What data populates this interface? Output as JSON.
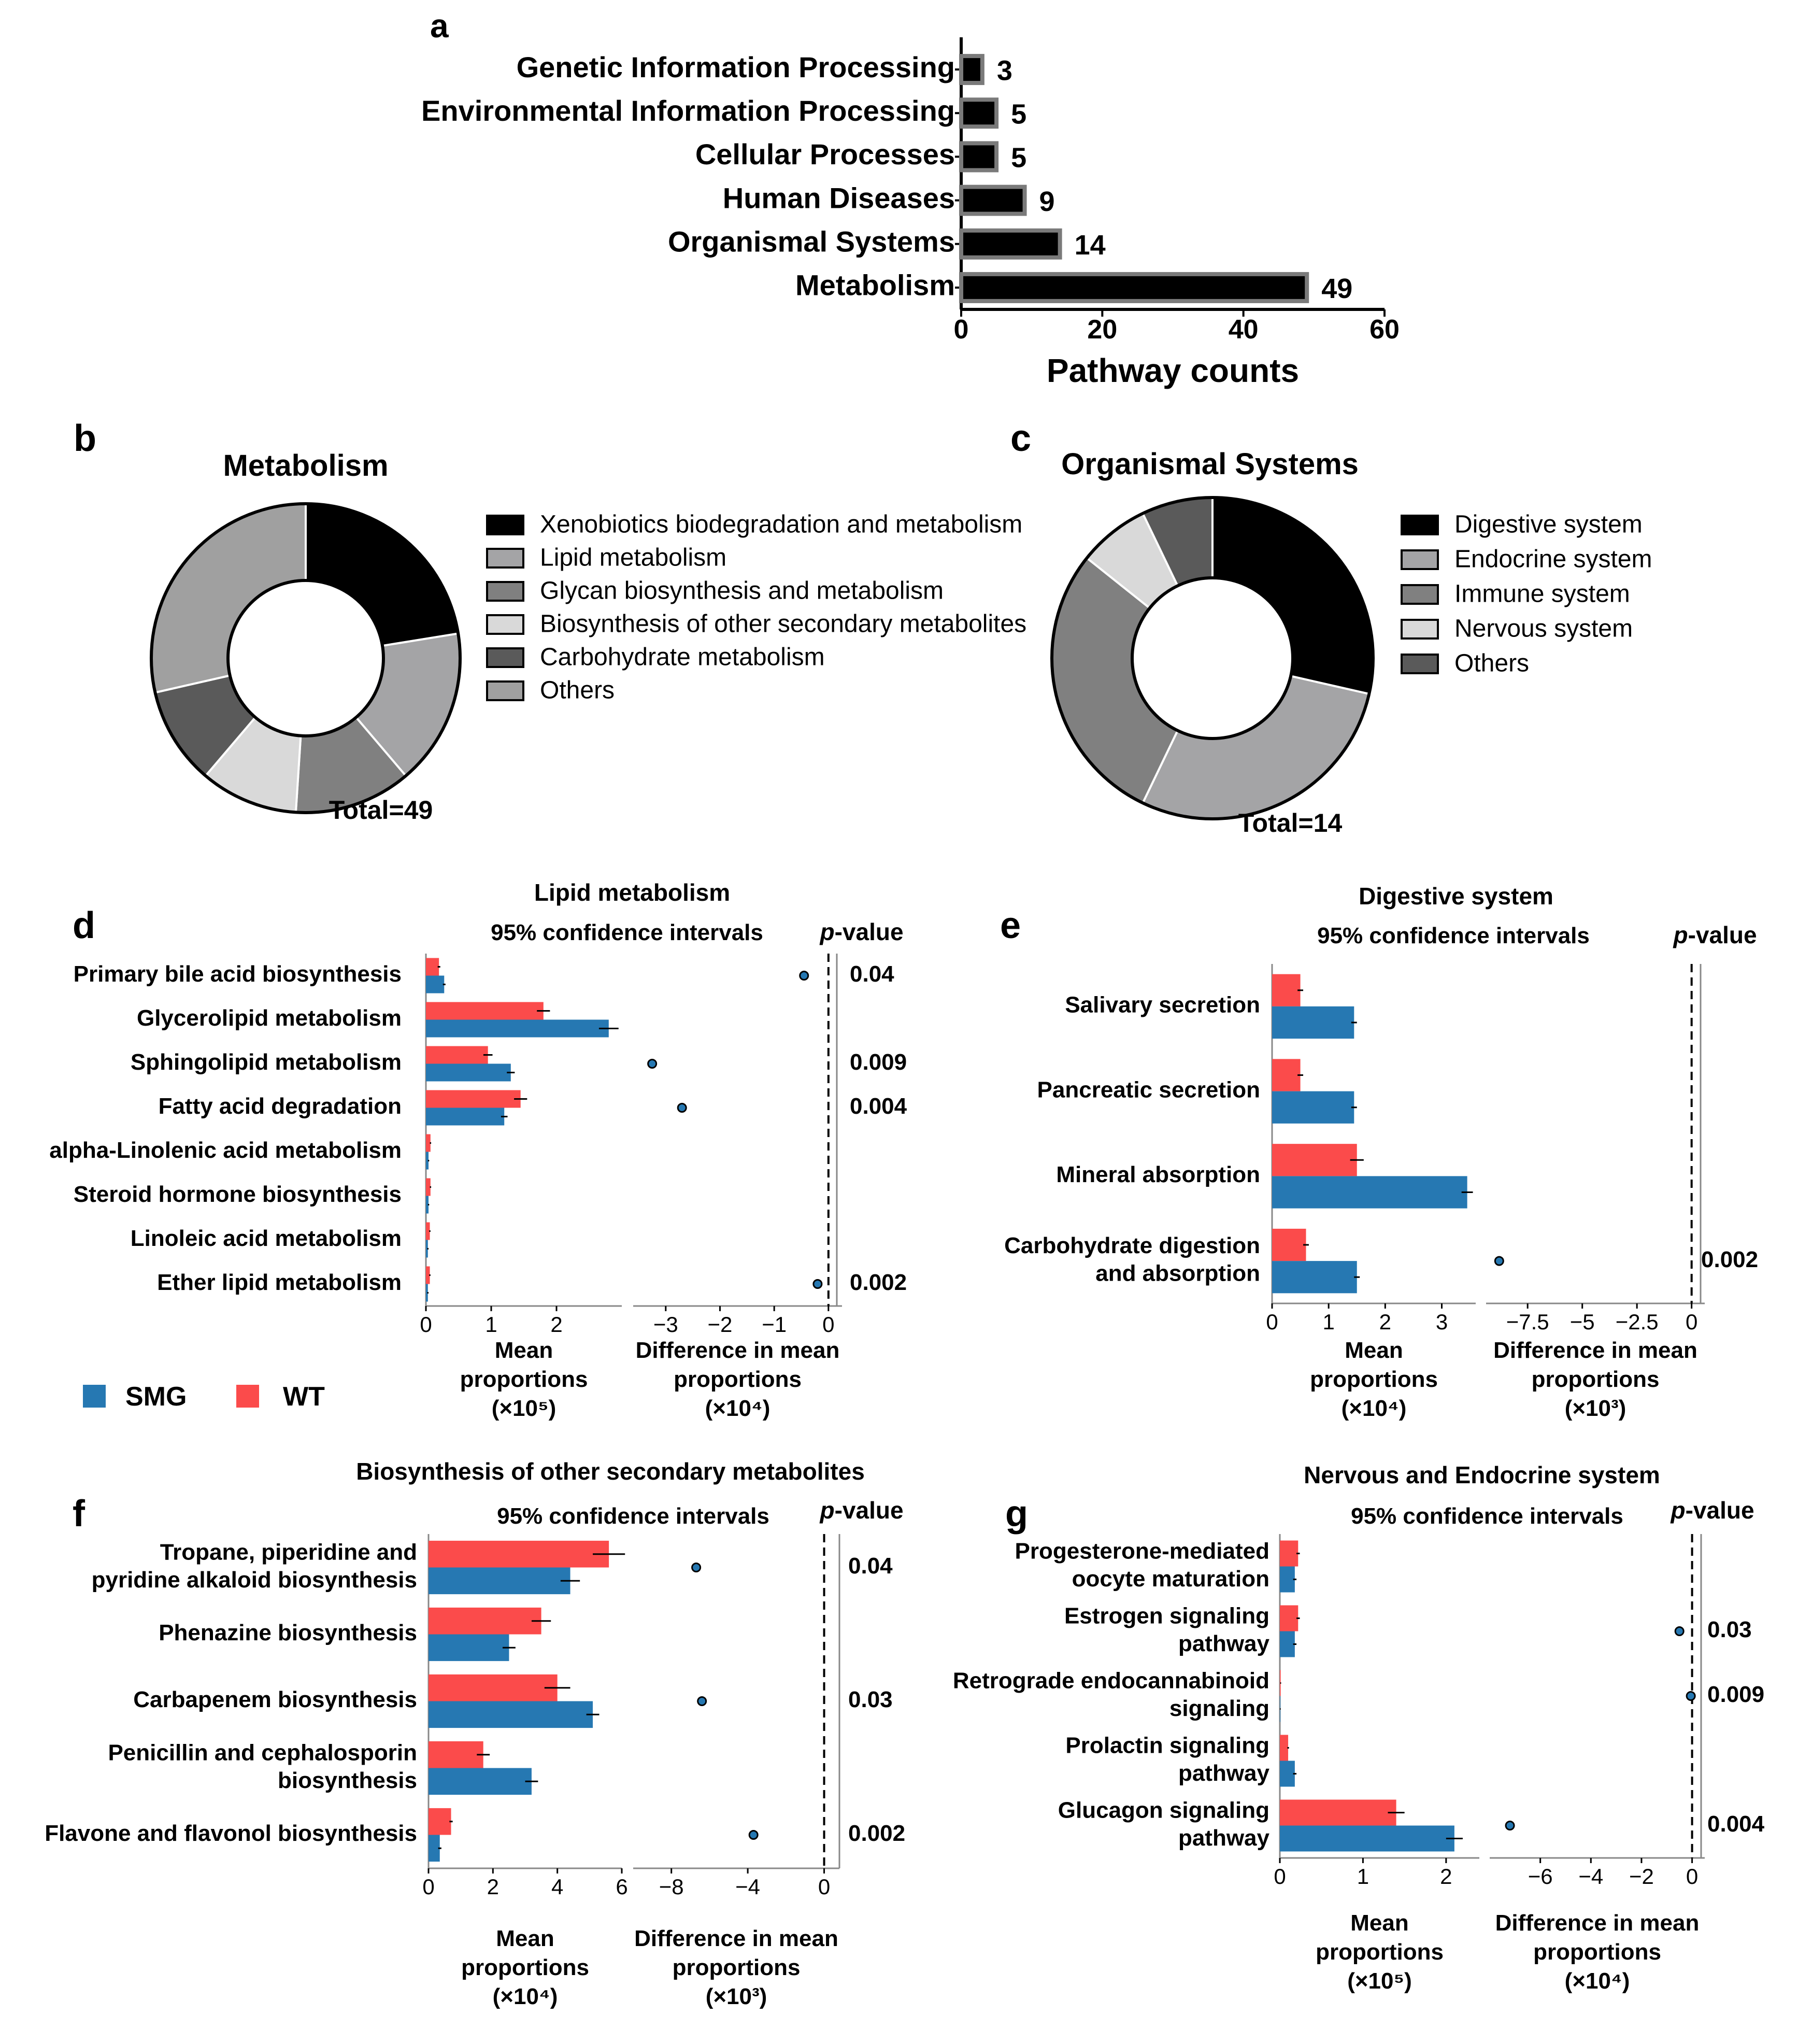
{
  "colors": {
    "smg": "#2678b2",
    "wt": "#fb4b4b",
    "black": "#000000",
    "gray": "#808080"
  },
  "legend": {
    "smg": "SMG",
    "wt": "WT"
  },
  "panel_labels": {
    "a": "a",
    "b": "b",
    "c": "c",
    "d": "d",
    "e": "e",
    "f": "f",
    "g": "g"
  },
  "common": {
    "ci": "95% confidence intervals",
    "p_label_italic": "p",
    "p_label_rest": "-value",
    "mean1": "Mean",
    "mean2": "proportions",
    "diff1": "Difference in mean",
    "diff2": "proportions"
  },
  "chart_data": [
    {
      "id": "a",
      "type": "bar",
      "orientation": "horizontal",
      "xlabel": "Pathway counts",
      "categories": [
        "Genetic Information Processing",
        "Environmental Information Processing",
        "Cellular Processes",
        "Human Diseases",
        "Organismal Systems",
        "Metabolism"
      ],
      "values": [
        3,
        5,
        5,
        9,
        14,
        49
      ],
      "value_labels": [
        "3",
        "5",
        "5",
        "9",
        "14",
        "49"
      ],
      "xlim": [
        0,
        60
      ],
      "ticks": [
        "0",
        "20",
        "40",
        "60"
      ]
    },
    {
      "id": "b",
      "type": "pie",
      "donut": true,
      "title": "Metabolism",
      "total_label": "Total=49",
      "slices": [
        {
          "label": "Xenobiotics biodegradation and metabolism",
          "value": 11,
          "color": "#000000"
        },
        {
          "label": "Lipid metabolism",
          "value": 8,
          "color": "#a4a4a6"
        },
        {
          "label": "Glycan biosynthesis and metabolism",
          "value": 6,
          "color": "#808080"
        },
        {
          "label": "Biosynthesis of other secondary metabolites",
          "value": 5,
          "color": "#d9d9d9"
        },
        {
          "label": "Carbohydrate metabolism",
          "value": 5,
          "color": "#5a5a5a"
        },
        {
          "label": "Others",
          "value": 14,
          "color": "#a0a0a0"
        }
      ]
    },
    {
      "id": "c",
      "type": "pie",
      "donut": true,
      "title": "Organismal Systems",
      "total_label": "Total=14",
      "slices": [
        {
          "label": "Digestive system",
          "value": 4,
          "color": "#000000"
        },
        {
          "label": "Endocrine system",
          "value": 4,
          "color": "#a4a4a6"
        },
        {
          "label": "Immune system",
          "value": 4,
          "color": "#808080"
        },
        {
          "label": "Nervous system",
          "value": 1,
          "color": "#d9d9d9"
        },
        {
          "label": "Others",
          "value": 1,
          "color": "#5a5a5a"
        }
      ]
    },
    {
      "id": "d",
      "type": "bar",
      "subtype": "extended-error-bar",
      "title": "Lipid metabolism",
      "categories": [
        "Primary bile acid biosynthesis",
        "Glycerolipid metabolism",
        "Sphingolipid metabolism",
        "Fatty acid degradation",
        "alpha-Linolenic acid metabolism",
        "Steroid hormone biosynthesis",
        "Linoleic acid metabolism",
        "Ether lipid metabolism"
      ],
      "series": [
        {
          "name": "WT",
          "values": [
            0.2,
            1.8,
            0.95,
            1.45,
            0.07,
            0.07,
            0.06,
            0.06
          ],
          "err": [
            0.02,
            0.1,
            0.07,
            0.1,
            0.01,
            0.01,
            0.01,
            0.01
          ]
        },
        {
          "name": "SMG",
          "values": [
            0.28,
            2.8,
            1.3,
            1.2,
            0.04,
            0.04,
            0.03,
            0.03
          ],
          "err": [
            0.02,
            0.15,
            0.06,
            0.05,
            0.01,
            0.01,
            0.01,
            0.01
          ]
        }
      ],
      "diff": [
        -0.45,
        null,
        -3.25,
        -2.7,
        null,
        null,
        null,
        -0.2
      ],
      "pvalues": [
        "0.04",
        "",
        "0.009",
        "0.004",
        "",
        "",
        "",
        "0.002"
      ],
      "mean_xlim": [
        0,
        3.0
      ],
      "mean_ticks": [
        0,
        1,
        2
      ],
      "mean_ticklabels": [
        "0",
        "1",
        "2"
      ],
      "mean_unit": "(×10⁵)",
      "diff_xlim": [
        -3.6,
        0.25
      ],
      "diff_ticks": [
        -3,
        -2,
        -1,
        0
      ],
      "diff_ticklabels": [
        "−3",
        "−2",
        "−1",
        "0"
      ],
      "diff_unit": "(×10⁴)"
    },
    {
      "id": "e",
      "type": "bar",
      "subtype": "extended-error-bar",
      "title": "Digestive system",
      "categories": [
        "Salivary secretion",
        "Pancreatic secretion",
        "Mineral absorption",
        "Carbohydrate digestion|and absorption"
      ],
      "series": [
        {
          "name": "WT",
          "values": [
            0.5,
            0.5,
            1.5,
            0.6
          ],
          "err": [
            0.05,
            0.05,
            0.12,
            0.05
          ]
        },
        {
          "name": "SMG",
          "values": [
            1.45,
            1.45,
            3.45,
            1.5
          ],
          "err": [
            0.05,
            0.05,
            0.1,
            0.05
          ]
        }
      ],
      "diff": [
        null,
        null,
        null,
        -8.8
      ],
      "pvalues": [
        "",
        "",
        "",
        "0.002"
      ],
      "mean_xlim": [
        0,
        3.6
      ],
      "mean_ticks": [
        0,
        1,
        2,
        3
      ],
      "mean_ticklabels": [
        "0",
        "1",
        "2",
        "3"
      ],
      "mean_unit": "(×10⁴)",
      "diff_xlim": [
        -9.4,
        0.6
      ],
      "diff_ticks": [
        -7.5,
        -5,
        -2.5,
        0
      ],
      "diff_ticklabels": [
        "−7.5",
        "−5",
        "−2.5",
        "0"
      ],
      "diff_unit": "(×10³)"
    },
    {
      "id": "f",
      "type": "bar",
      "subtype": "extended-error-bar",
      "title": "Biosynthesis of other secondary metabolites",
      "categories": [
        "Tropane, piperidine and|pyridine alkaloid biosynthesis",
        "Phenazine biosynthesis",
        "Carbapenem biosynthesis",
        "Penicillin and cephalosporin|biosynthesis",
        "Flavone and flavonol biosynthesis"
      ],
      "series": [
        {
          "name": "WT",
          "values": [
            5.6,
            3.5,
            4.0,
            1.7,
            0.7
          ],
          "err": [
            0.5,
            0.3,
            0.4,
            0.2,
            0.05
          ]
        },
        {
          "name": "SMG",
          "values": [
            4.4,
            2.5,
            5.1,
            3.2,
            0.35
          ],
          "err": [
            0.3,
            0.2,
            0.2,
            0.2,
            0.05
          ]
        }
      ],
      "diff": [
        -6.7,
        null,
        -6.4,
        null,
        -3.7
      ],
      "pvalues": [
        "0.04",
        "",
        "0.03",
        "",
        "0.002"
      ],
      "mean_xlim": [
        0,
        6.0
      ],
      "mean_ticks": [
        0,
        2,
        4,
        6
      ],
      "mean_ticklabels": [
        "0",
        "2",
        "4",
        "6"
      ],
      "mean_unit": "(×10⁴)",
      "diff_xlim": [
        -10.0,
        0.8
      ],
      "diff_ticks": [
        -8,
        -4,
        0
      ],
      "diff_ticklabels": [
        "−8",
        "−4",
        "0"
      ],
      "diff_unit": "(×10³)"
    },
    {
      "id": "g",
      "type": "bar",
      "subtype": "extended-error-bar",
      "title": "Nervous and Endocrine system",
      "categories": [
        "Progesterone-mediated|oocyte maturation",
        "Estrogen signaling|pathway",
        "Retrograde endocannabinoid|signaling",
        "Prolactin signaling|pathway",
        "Glucagon signaling|pathway"
      ],
      "series": [
        {
          "name": "WT",
          "values": [
            0.22,
            0.22,
            0.01,
            0.1,
            1.4
          ],
          "err": [
            0.02,
            0.02,
            0.005,
            0.01,
            0.1
          ]
        },
        {
          "name": "SMG",
          "values": [
            0.18,
            0.18,
            0.005,
            0.18,
            2.1
          ],
          "err": [
            0.02,
            0.02,
            0.005,
            0.02,
            0.1
          ]
        }
      ],
      "diff": [
        null,
        -0.5,
        -0.05,
        null,
        -7.2
      ],
      "pvalues": [
        "",
        "0.03",
        "0.009",
        "",
        "0.004"
      ],
      "mean_xlim": [
        0,
        2.4
      ],
      "mean_ticks": [
        0,
        1,
        2
      ],
      "mean_ticklabels": [
        "0",
        "1",
        "2"
      ],
      "mean_unit": "(×10⁵)",
      "diff_xlim": [
        -8.0,
        0.5
      ],
      "diff_ticks": [
        -6,
        -4,
        -2,
        0
      ],
      "diff_ticklabels": [
        "−6",
        "−4",
        "−2",
        "0"
      ],
      "diff_unit": "(×10⁴)"
    }
  ]
}
